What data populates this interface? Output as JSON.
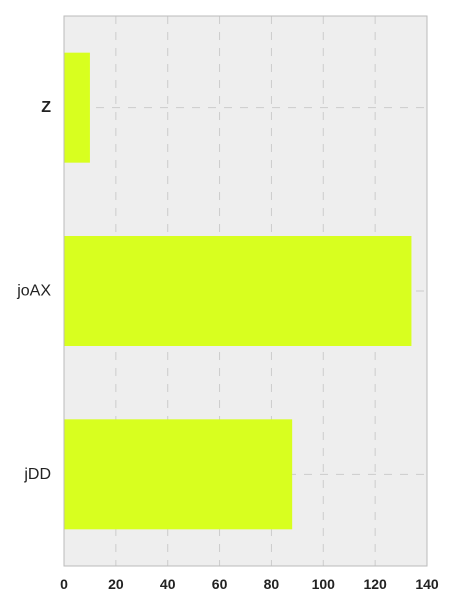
{
  "chart_data": {
    "type": "bar",
    "orientation": "horizontal",
    "categories": [
      "Z",
      "joAX",
      "jDD"
    ],
    "values": [
      10,
      134,
      88
    ],
    "xlim": [
      0,
      140
    ],
    "x_ticks": [
      0,
      20,
      40,
      60,
      80,
      100,
      120,
      140
    ],
    "title": "",
    "xlabel": "",
    "ylabel": "",
    "grid": true,
    "colors": {
      "bar": "#d8ff1f",
      "plot_background": "#eeeeee",
      "axis_border": "#bbbbbb",
      "grid": "#cccccc",
      "text": "#222222"
    }
  }
}
